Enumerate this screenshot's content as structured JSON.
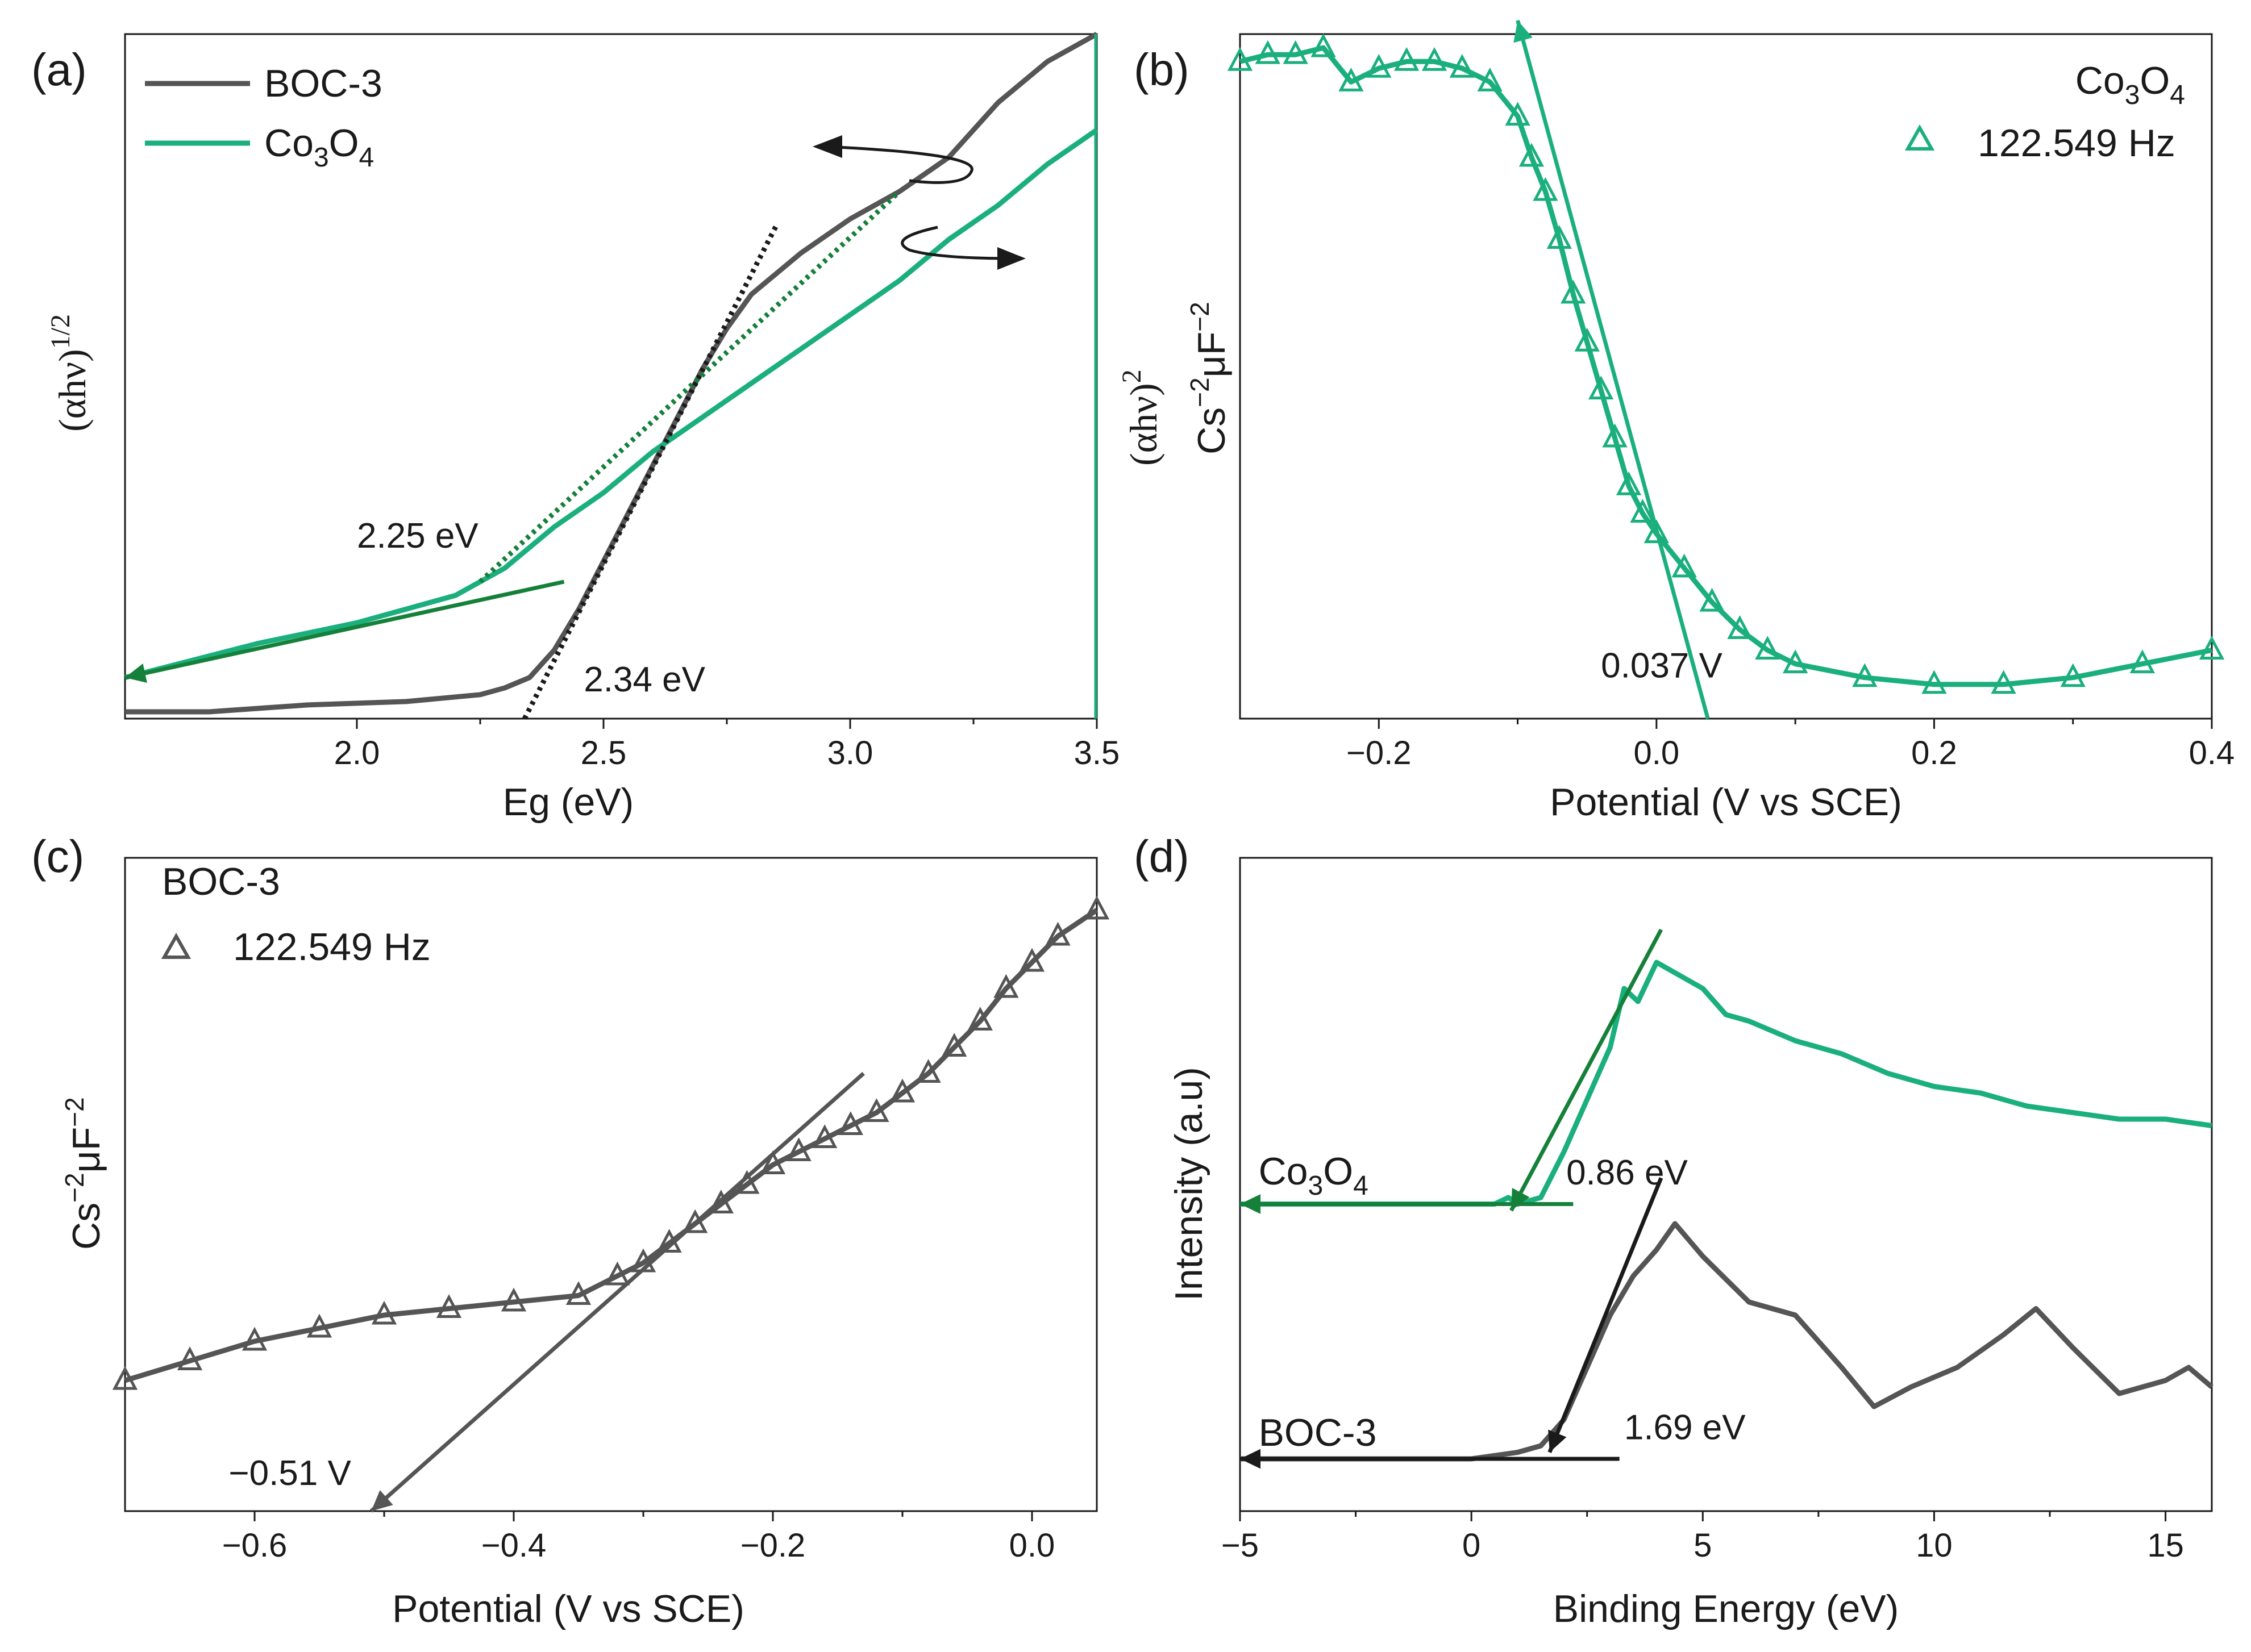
{
  "colors": {
    "green": "#1aaf7c",
    "darkgreen": "#15803a",
    "gray": "#555555",
    "dark": "#1a1a1a"
  },
  "chart_data": [
    {
      "id": "a",
      "panel_label": "(a)",
      "type": "line",
      "xlabel": "Eg (eV)",
      "ylabel_left": "(αhν)",
      "ylabel_left_sup": "1/2",
      "ylabel_right": "(αhν)",
      "ylabel_right_sup": "2",
      "xlim": [
        1.53,
        3.5
      ],
      "ylim": [
        0,
        1
      ],
      "xticks": [
        2.0,
        2.5,
        3.0,
        3.5
      ],
      "xtick_labels": [
        "2.0",
        "2.5",
        "3.0",
        "3.5"
      ],
      "series": [
        {
          "name": "BOC-3",
          "name_sub": "",
          "color": "#555555",
          "x": [
            1.53,
            1.7,
            1.9,
            2.1,
            2.25,
            2.3,
            2.35,
            2.4,
            2.45,
            2.5,
            2.55,
            2.6,
            2.65,
            2.7,
            2.75,
            2.8,
            2.9,
            3.0,
            3.1,
            3.2,
            3.25,
            3.3,
            3.4,
            3.5
          ],
          "y": [
            0.01,
            0.01,
            0.02,
            0.025,
            0.035,
            0.045,
            0.06,
            0.1,
            0.16,
            0.23,
            0.3,
            0.37,
            0.44,
            0.51,
            0.57,
            0.62,
            0.68,
            0.73,
            0.77,
            0.82,
            0.86,
            0.9,
            0.96,
            1.0
          ]
        },
        {
          "name": "Co",
          "name_sub": "3",
          "name_after": "O",
          "name_sub2": "4",
          "color": "#1aaf7c",
          "x": [
            1.53,
            1.8,
            2.0,
            2.2,
            2.3,
            2.4,
            2.5,
            2.6,
            2.7,
            2.8,
            2.9,
            3.0,
            3.1,
            3.2,
            3.3,
            3.4,
            3.5
          ],
          "y": [
            0.06,
            0.11,
            0.14,
            0.18,
            0.22,
            0.28,
            0.33,
            0.39,
            0.44,
            0.49,
            0.54,
            0.59,
            0.64,
            0.7,
            0.75,
            0.81,
            0.86
          ]
        }
      ],
      "fits": [
        {
          "color": "#1a1a1a",
          "dotted": true,
          "x": [
            2.34,
            2.85
          ],
          "y": [
            0.0,
            0.72
          ]
        },
        {
          "color": "#15803a",
          "dotted": true,
          "x": [
            2.25,
            3.1
          ],
          "y": [
            0.2,
            0.77
          ]
        },
        {
          "color": "#15803a",
          "dotted": false,
          "x": [
            1.53,
            2.42
          ],
          "y": [
            0.06,
            0.2
          ]
        }
      ],
      "annotations": [
        {
          "text": "2.25 eV",
          "x": 2.0,
          "y": 0.25
        },
        {
          "text": "2.34 eV",
          "x": 2.46,
          "y": 0.04
        }
      ]
    },
    {
      "id": "b",
      "panel_label": "(b)",
      "type": "scatter",
      "xlabel": "Potential (V vs SCE)",
      "ylabel_left": "Cs",
      "ylabel_left_mid": "μF",
      "ylabel_sup1": "−2",
      "ylabel_sup2": "−2",
      "xlim": [
        -0.3,
        0.4
      ],
      "ylim": [
        0,
        1
      ],
      "xticks": [
        -0.2,
        0.0,
        0.2,
        0.4
      ],
      "xtick_labels": [
        "−0.2",
        "0.0",
        "0.2",
        "0.4"
      ],
      "legend_title": "Co",
      "legend_title_sub": "3",
      "legend_title_after": "O",
      "legend_title_sub2": "4",
      "legend_entry": "122.549 Hz",
      "series": [
        {
          "name": "122.549 Hz",
          "color": "#1aaf7c",
          "x": [
            -0.3,
            -0.28,
            -0.26,
            -0.24,
            -0.22,
            -0.2,
            -0.18,
            -0.16,
            -0.14,
            -0.12,
            -0.1,
            -0.09,
            -0.08,
            -0.07,
            -0.06,
            -0.05,
            -0.04,
            -0.03,
            -0.02,
            -0.01,
            0.0,
            0.02,
            0.04,
            0.06,
            0.08,
            0.1,
            0.15,
            0.2,
            0.25,
            0.3,
            0.35,
            0.4
          ],
          "y": [
            0.96,
            0.97,
            0.97,
            0.98,
            0.93,
            0.95,
            0.96,
            0.96,
            0.95,
            0.93,
            0.88,
            0.82,
            0.77,
            0.7,
            0.62,
            0.55,
            0.48,
            0.41,
            0.34,
            0.3,
            0.27,
            0.22,
            0.17,
            0.13,
            0.1,
            0.08,
            0.06,
            0.05,
            0.05,
            0.06,
            0.08,
            0.1
          ]
        }
      ],
      "fits": [
        {
          "color": "#1aaf7c",
          "x": [
            -0.1,
            0.037
          ],
          "y": [
            1.02,
            0.0
          ]
        }
      ],
      "annotations": [
        {
          "text": "0.037 V",
          "x": -0.04,
          "y": 0.06
        }
      ]
    },
    {
      "id": "c",
      "panel_label": "(c)",
      "type": "scatter",
      "xlabel": "Potential (V vs SCE)",
      "ylabel_left": "Cs",
      "ylabel_left_mid": "μF",
      "ylabel_sup1": "−2",
      "ylabel_sup2": "−2",
      "xlim": [
        -0.7,
        0.05
      ],
      "ylim": [
        0,
        1
      ],
      "xticks": [
        -0.6,
        -0.4,
        -0.2,
        0.0
      ],
      "xtick_labels": [
        "−0.6",
        "−0.4",
        "−0.2",
        "0.0"
      ],
      "legend_title": "BOC-3",
      "legend_entry": "122.549 Hz",
      "series": [
        {
          "name": "122.549 Hz",
          "color": "#555555",
          "x": [
            -0.7,
            -0.65,
            -0.6,
            -0.55,
            -0.5,
            -0.45,
            -0.4,
            -0.35,
            -0.32,
            -0.3,
            -0.28,
            -0.26,
            -0.24,
            -0.22,
            -0.2,
            -0.18,
            -0.16,
            -0.14,
            -0.12,
            -0.1,
            -0.08,
            -0.06,
            -0.04,
            -0.02,
            0.0,
            0.02,
            0.05
          ],
          "y": [
            0.2,
            0.23,
            0.26,
            0.28,
            0.3,
            0.31,
            0.32,
            0.33,
            0.36,
            0.38,
            0.41,
            0.44,
            0.47,
            0.5,
            0.53,
            0.55,
            0.57,
            0.59,
            0.61,
            0.64,
            0.67,
            0.71,
            0.75,
            0.8,
            0.84,
            0.88,
            0.92
          ]
        }
      ],
      "fits": [
        {
          "color": "#555555",
          "x": [
            -0.51,
            -0.13
          ],
          "y": [
            0.0,
            0.67
          ]
        }
      ],
      "annotations": [
        {
          "text": "−0.51 V",
          "x": -0.62,
          "y": 0.04
        }
      ]
    },
    {
      "id": "d",
      "panel_label": "(d)",
      "type": "line",
      "xlabel": "Binding Energy (eV)",
      "ylabel_left": "Intensity (a.u)",
      "xlim": [
        -5,
        16
      ],
      "ylim": [
        0,
        1
      ],
      "xticks": [
        -5,
        0,
        5,
        10,
        15
      ],
      "xtick_labels": [
        "−5",
        "0",
        "5",
        "10",
        "15"
      ],
      "series": [
        {
          "name": "Co",
          "name_sub": "3",
          "name_after": "O",
          "name_sub2": "4",
          "color": "#1aaf7c",
          "x": [
            -5,
            -2,
            0,
            0.5,
            0.8,
            1.0,
            1.5,
            2.0,
            2.5,
            3.0,
            3.3,
            3.6,
            4.0,
            4.5,
            5.0,
            5.5,
            6.0,
            7.0,
            8.0,
            9.0,
            10.0,
            11.0,
            12.0,
            13.0,
            14.0,
            15.0,
            16.0
          ],
          "y": [
            0.47,
            0.47,
            0.47,
            0.47,
            0.48,
            0.47,
            0.48,
            0.55,
            0.63,
            0.71,
            0.8,
            0.78,
            0.84,
            0.82,
            0.8,
            0.76,
            0.75,
            0.72,
            0.7,
            0.67,
            0.65,
            0.64,
            0.62,
            0.61,
            0.6,
            0.6,
            0.59
          ]
        },
        {
          "name": "BOC-3",
          "color": "#555555",
          "x": [
            -5,
            -2,
            0,
            1.0,
            1.5,
            2.0,
            2.5,
            3.0,
            3.5,
            4.0,
            4.4,
            5.0,
            6.0,
            7.0,
            8.0,
            8.7,
            9.5,
            10.5,
            11.5,
            12.2,
            13.0,
            14.0,
            15.0,
            15.5,
            16.0
          ],
          "y": [
            0.08,
            0.08,
            0.08,
            0.09,
            0.1,
            0.14,
            0.22,
            0.3,
            0.36,
            0.4,
            0.44,
            0.39,
            0.32,
            0.3,
            0.22,
            0.16,
            0.19,
            0.22,
            0.27,
            0.31,
            0.25,
            0.18,
            0.2,
            0.22,
            0.19
          ]
        }
      ],
      "fits": [
        {
          "color": "#15803a",
          "x": [
            -5,
            2.2
          ],
          "y": [
            0.47,
            0.47
          ]
        },
        {
          "color": "#15803a",
          "x": [
            0.86,
            4.1
          ],
          "y": [
            0.46,
            0.89
          ]
        },
        {
          "color": "#1a1a1a",
          "x": [
            -5,
            3.2
          ],
          "y": [
            0.08,
            0.08
          ]
        },
        {
          "color": "#1a1a1a",
          "x": [
            1.69,
            4.1
          ],
          "y": [
            0.09,
            0.51
          ]
        }
      ],
      "labels": [
        {
          "text": "Co",
          "sub": "3",
          "after": "O",
          "sub2": "4",
          "x": -4.6,
          "y": 0.5
        },
        {
          "text": "BOC-3",
          "x": -4.6,
          "y": 0.1
        }
      ],
      "annotations": [
        {
          "text": "0.86 eV",
          "x": 2.05,
          "y": 0.5
        },
        {
          "text": "1.69 eV",
          "x": 3.3,
          "y": 0.11
        }
      ]
    }
  ]
}
